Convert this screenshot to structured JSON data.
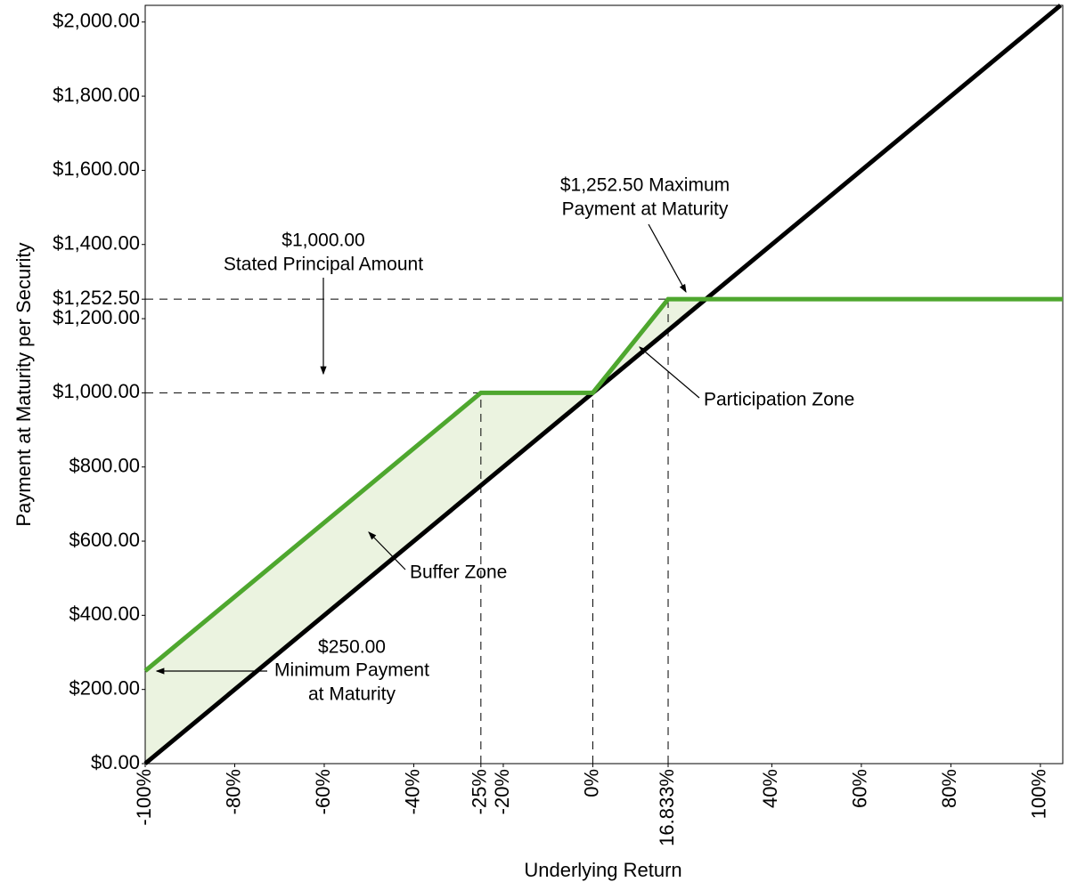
{
  "chart_data": {
    "type": "line",
    "x_axis_label": "Underlying Return",
    "y_axis_label": "Payment at Maturity per Security",
    "xlim": [
      -100,
      105
    ],
    "ylim": [
      0,
      2045
    ],
    "xticks": [
      {
        "value": -100,
        "label": "-100%"
      },
      {
        "value": -80,
        "label": "-80%"
      },
      {
        "value": -60,
        "label": "-60%"
      },
      {
        "value": -40,
        "label": "-40%"
      },
      {
        "value": -25,
        "label": "-25%"
      },
      {
        "value": -20,
        "label": "-20%"
      },
      {
        "value": 0,
        "label": "0%"
      },
      {
        "value": 16.833,
        "label": "16.833%"
      },
      {
        "value": 40,
        "label": "40%"
      },
      {
        "value": 60,
        "label": "60%"
      },
      {
        "value": 80,
        "label": "80%"
      },
      {
        "value": 100,
        "label": "100%"
      }
    ],
    "yticks": [
      {
        "value": 0,
        "label": "$0.00"
      },
      {
        "value": 200,
        "label": "$200.00"
      },
      {
        "value": 400,
        "label": "$400.00"
      },
      {
        "value": 600,
        "label": "$600.00"
      },
      {
        "value": 800,
        "label": "$800.00"
      },
      {
        "value": 1000,
        "label": "$1,000.00"
      },
      {
        "value": 1200,
        "label": "$1,200.00"
      },
      {
        "value": 1252.5,
        "label": "$1,252.50"
      },
      {
        "value": 1400,
        "label": "$1,400.00"
      },
      {
        "value": 1600,
        "label": "$1,600.00"
      },
      {
        "value": 1800,
        "label": "$1,800.00"
      },
      {
        "value": 2000,
        "label": "$2,000.00"
      }
    ],
    "series": [
      {
        "x": [
          -100,
          104.5
        ],
        "values": [
          0,
          2045
        ],
        "color": "#000000"
      },
      {
        "x": [
          -100,
          -25,
          0,
          16.833,
          105
        ],
        "values": [
          250,
          1000,
          1000,
          1252.5,
          1252.5
        ],
        "color": "#4ea72e"
      }
    ],
    "shade_color": "#ebf3e0",
    "hlines": [
      {
        "y": 1000,
        "x_to": 0
      },
      {
        "y": 1252.5,
        "x_to": 105
      }
    ],
    "vlines": [
      {
        "x": -25,
        "y_to": 1000
      },
      {
        "x": 0,
        "y_to": 1000
      },
      {
        "x": 16.833,
        "y_to": 1252.5
      }
    ],
    "annotations": [
      {
        "lines": [
          "$1,000.00",
          "Stated Principal Amount"
        ]
      },
      {
        "lines": [
          "$1,252.50 Maximum",
          "Payment at Maturity"
        ]
      },
      {
        "lines": [
          "Participation Zone"
        ]
      },
      {
        "lines": [
          "Buffer Zone"
        ]
      },
      {
        "lines": [
          "$250.00",
          "Minimum Payment",
          "at Maturity"
        ]
      }
    ]
  }
}
